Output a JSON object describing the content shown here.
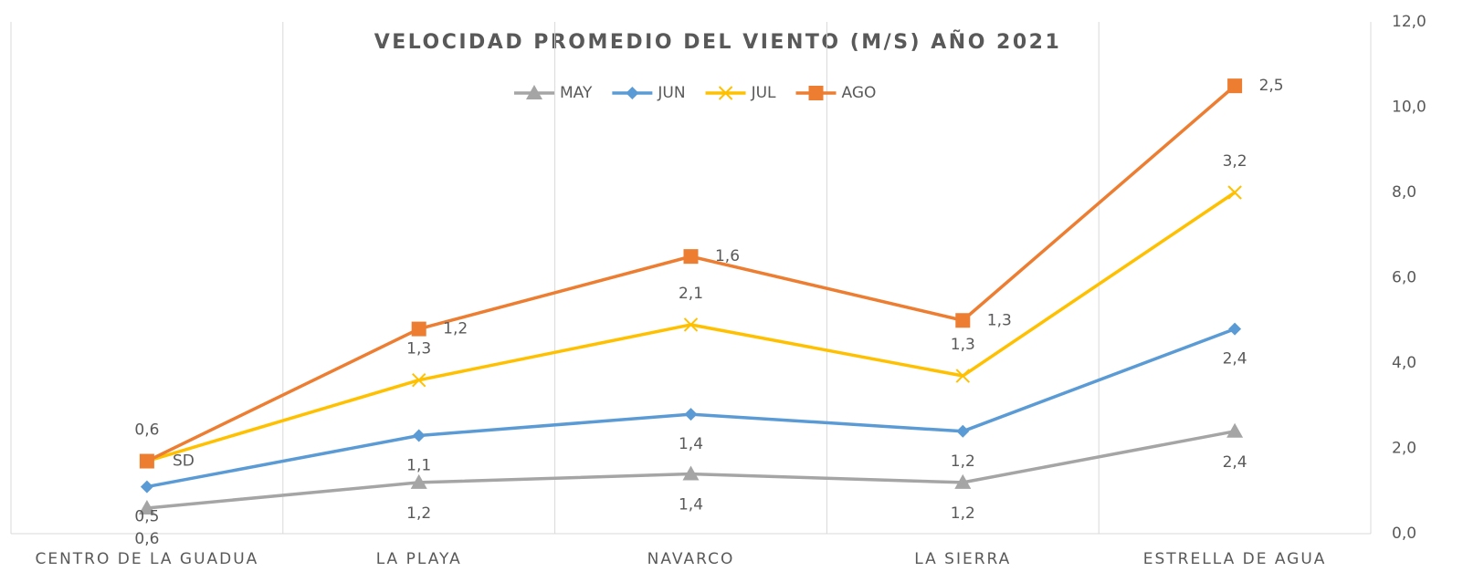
{
  "chart_data": {
    "type": "stacked_line",
    "title": "VELOCIDAD PROMEDIO DEL VIENTO (M/S) AÑO 2021",
    "categories": [
      "CENTRO DE LA GUADUA",
      "LA PLAYA",
      "NAVARCO",
      "LA SIERRA",
      "ESTRELLA DE AGUA"
    ],
    "series": [
      {
        "name": "MAY",
        "color": "#a5a5a5",
        "marker": "triangle",
        "values": [
          0.6,
          1.2,
          1.4,
          1.2,
          2.4
        ],
        "value_labels": [
          "0,6",
          "1,2",
          "1,4",
          "1,2",
          "2,4"
        ]
      },
      {
        "name": "JUN",
        "color": "#5b9bd5",
        "marker": "diamond",
        "values": [
          0.5,
          1.1,
          1.4,
          1.2,
          2.4
        ],
        "value_labels": [
          "0,5",
          "1,1",
          "1,4",
          "1,2",
          "2,4"
        ]
      },
      {
        "name": "JUL",
        "color": "#ffc000",
        "marker": "x",
        "values": [
          0.6,
          1.3,
          2.1,
          1.3,
          3.2
        ],
        "value_labels": [
          "0,6",
          "1,3",
          "2,1",
          "1,3",
          "3,2"
        ]
      },
      {
        "name": "AGO",
        "color": "#ed7d31",
        "marker": "square",
        "values": [
          0,
          1.2,
          1.6,
          1.3,
          2.5
        ],
        "value_labels": [
          "SD",
          "1,2",
          "1,6",
          "1,3",
          "2,5"
        ]
      }
    ],
    "ylim": [
      0,
      12
    ],
    "yticks": [
      {
        "value": 0,
        "label": "0,0"
      },
      {
        "value": 2,
        "label": "2,0"
      },
      {
        "value": 4,
        "label": "4,0"
      },
      {
        "value": 6,
        "label": "6,0"
      },
      {
        "value": 8,
        "label": "8,0"
      },
      {
        "value": 10,
        "label": "10,0"
      },
      {
        "value": 12,
        "label": "12,0"
      }
    ],
    "y_axis_side": "right",
    "grid": "vertical",
    "legend": "top"
  }
}
